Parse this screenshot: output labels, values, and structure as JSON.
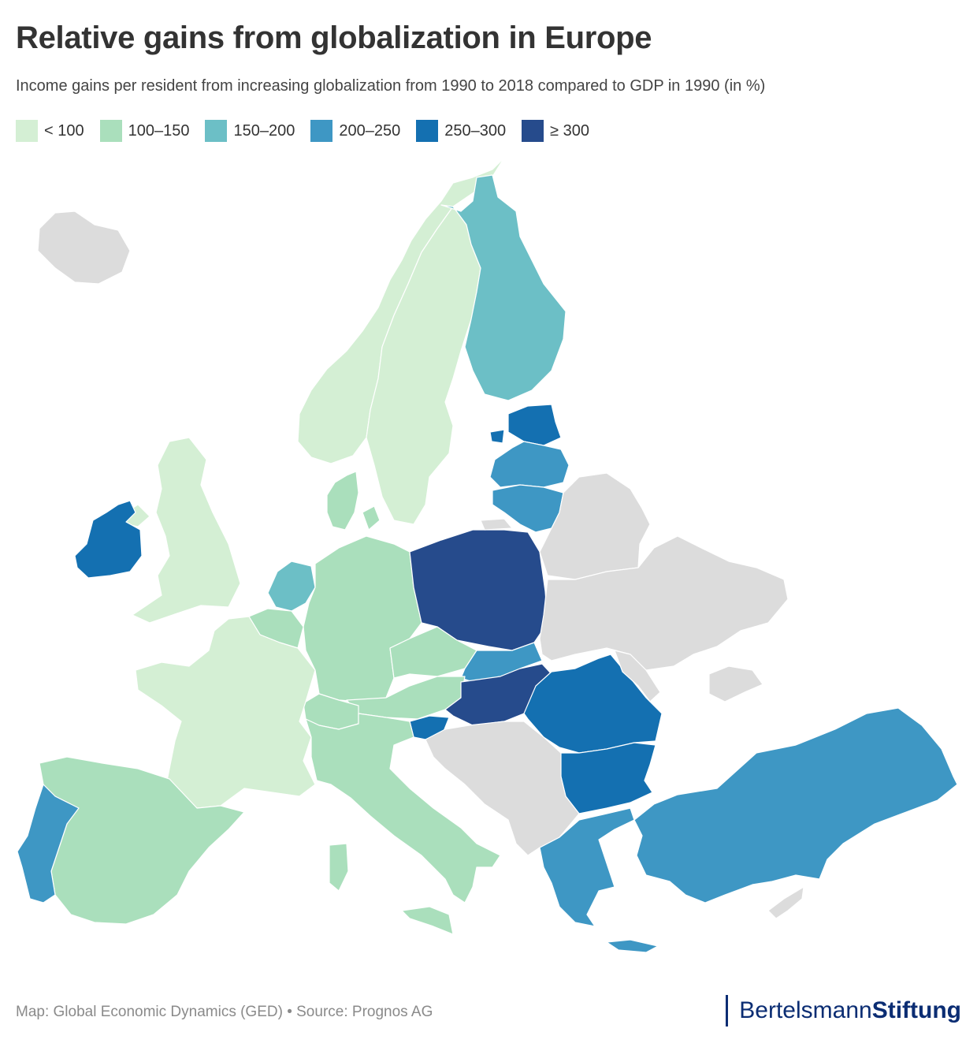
{
  "title": "Relative gains from globalization in Europe",
  "subtitle": "Income gains per resident from increasing globalization from 1990 to 2018 compared to GDP in 1990 (in %)",
  "legend": [
    {
      "label": "< 100",
      "color": "#d4efd4"
    },
    {
      "label": "100–150",
      "color": "#aadfbc"
    },
    {
      "label": "150–200",
      "color": "#6cbfc6"
    },
    {
      "label": "200–250",
      "color": "#3e97c4"
    },
    {
      "label": "250–300",
      "color": "#1470b1"
    },
    {
      "label": "≥ 300",
      "color": "#264b8c"
    }
  ],
  "no_data_color": "#dcdcdc",
  "regions": [
    {
      "name": "Iceland",
      "class": "no-data"
    },
    {
      "name": "Norway",
      "class": "< 100"
    },
    {
      "name": "Sweden",
      "class": "< 100"
    },
    {
      "name": "Finland",
      "class": "150–200"
    },
    {
      "name": "Estonia",
      "class": "250–300"
    },
    {
      "name": "Latvia",
      "class": "200–250"
    },
    {
      "name": "Lithuania",
      "class": "200–250"
    },
    {
      "name": "Denmark",
      "class": "100–150"
    },
    {
      "name": "United Kingdom",
      "class": "< 100"
    },
    {
      "name": "Ireland",
      "class": "250–300"
    },
    {
      "name": "Netherlands",
      "class": "150–200"
    },
    {
      "name": "Belgium",
      "class": "100–150"
    },
    {
      "name": "Germany",
      "class": "100–150"
    },
    {
      "name": "Poland",
      "class": "≥ 300"
    },
    {
      "name": "Czechia",
      "class": "100–150"
    },
    {
      "name": "Slovakia",
      "class": "200–250"
    },
    {
      "name": "Austria",
      "class": "100–150"
    },
    {
      "name": "Switzerland",
      "class": "100–150"
    },
    {
      "name": "Hungary",
      "class": "≥ 300"
    },
    {
      "name": "Slovenia",
      "class": "250–300"
    },
    {
      "name": "France",
      "class": "< 100"
    },
    {
      "name": "Spain",
      "class": "100–150"
    },
    {
      "name": "Portugal",
      "class": "200–250"
    },
    {
      "name": "Italy",
      "class": "100–150"
    },
    {
      "name": "Romania",
      "class": "250–300"
    },
    {
      "name": "Bulgaria",
      "class": "250–300"
    },
    {
      "name": "Greece",
      "class": "200–250"
    },
    {
      "name": "Turkey",
      "class": "200–250"
    },
    {
      "name": "Belarus",
      "class": "no-data"
    },
    {
      "name": "Ukraine",
      "class": "no-data"
    },
    {
      "name": "Moldova",
      "class": "no-data"
    },
    {
      "name": "Western Balkans",
      "class": "no-data"
    },
    {
      "name": "Cyprus",
      "class": "no-data"
    }
  ],
  "footer": {
    "source": "Map: Global Economic Dynamics (GED) • Source: Prognos AG",
    "brand_light": "Bertelsmann",
    "brand_bold": "Stiftung"
  }
}
